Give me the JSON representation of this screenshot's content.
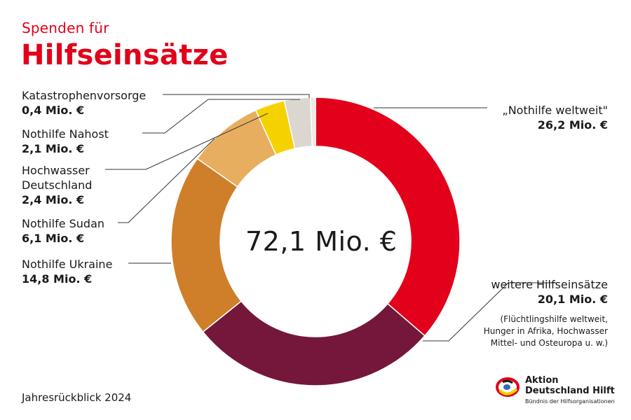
{
  "header": {
    "subtitle": "Spenden für",
    "title": "Hilfseinsätze"
  },
  "footer": {
    "year_label": "Jahresrückblick 2024"
  },
  "logo": {
    "line1": "Aktion",
    "line2": "Deutschland Hilft",
    "tagline": "Bündnis der Hilfsorganisationen"
  },
  "chart_data": {
    "type": "pie",
    "donut": true,
    "center_label": "72,1 Mio. €",
    "unit": "Mio. €",
    "slices": [
      {
        "name": "„Nothilfe weltweit\"",
        "value": 26.2,
        "label": "26,2 Mio. €",
        "color": "#e2001a"
      },
      {
        "name": "weitere Hilfseinsätze",
        "value": 20.1,
        "label": "20,1 Mio. €",
        "color": "#74173a",
        "note": "(Flüchtlingshilfe weltweit, Hunger in Afrika, Hochwasser Mittel- und Osteuropa u. w.)"
      },
      {
        "name": "Nothilfe Ukraine",
        "value": 14.8,
        "label": "14,8 Mio. €",
        "color": "#cf7f2a"
      },
      {
        "name": "Nothilfe Sudan",
        "value": 6.1,
        "label": "6,1 Mio. €",
        "color": "#e8ae5f"
      },
      {
        "name": "Hochwasser Deutschland",
        "value": 2.4,
        "label": "2,4 Mio. €",
        "color": "#f6d100"
      },
      {
        "name": "Nothilfe Nahost",
        "value": 2.1,
        "label": "2,1 Mio. €",
        "color": "#dcd6d0"
      },
      {
        "name": "Katastrophenvorsorge",
        "value": 0.4,
        "label": "0,4 Mio. €",
        "color": "#ece8e3"
      }
    ]
  }
}
